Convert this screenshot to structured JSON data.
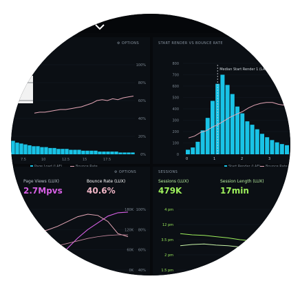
{
  "colors": {
    "background": "#07090c",
    "panel": "#0b0f14",
    "cyan": "#19c3e6",
    "pink": "#e6a7b7",
    "magenta": "#d760e5",
    "green": "#9ef05c",
    "white": "#ffffff"
  },
  "header": {
    "chevron_icon": "chevron-down-icon"
  },
  "top_left": {
    "options_label": "OPTIONS",
    "y_right_ticks": [
      "100%",
      "80%",
      "60%",
      "40%",
      "20%",
      "0%"
    ],
    "x_ticks": [
      "7.5",
      "10",
      "12.5",
      "15",
      "17.5"
    ],
    "legend": [
      "Page Load (LAF)",
      "Bounce Rate"
    ]
  },
  "top_right": {
    "title": "START RENDER VS BOUNCE RATE",
    "median_label": "Median Start Render 1 (LAF)",
    "y_ticks": [
      "800",
      "700",
      "600",
      "500",
      "400",
      "300",
      "200",
      "100",
      "0"
    ],
    "x_ticks": [
      "0",
      "1",
      "2",
      "3",
      "4"
    ],
    "legend": [
      "Start Render (LAF)",
      "Bounce Rate"
    ]
  },
  "bottom_left": {
    "options_label": "OPTIONS",
    "metric1_label": "Page Views (LUX)",
    "metric1_value": "2.7Mpvs",
    "metric2_label": "Bounce Rate (LUX)",
    "metric2_value": "40.6%",
    "y_left_ticks": [
      "180K",
      "120K",
      "60K",
      "0K"
    ],
    "y_right_ticks": [
      "100%",
      "80%",
      "60%",
      "40%"
    ]
  },
  "bottom_right": {
    "title": "SESSIONS",
    "metric1_label": "Sessions (LUX)",
    "metric1_value": "479K",
    "metric2_label": "Session Length (LUX)",
    "metric2_value": "17min",
    "y_ticks": [
      "4 pm",
      "12 pm",
      "3.5 pm",
      "2 pm",
      "1.5 pm"
    ]
  },
  "chart_data": [
    {
      "type": "bar",
      "panel": "top-left",
      "series": [
        {
          "name": "Page Load (LAF)",
          "values": [
            15,
            13,
            12,
            11,
            10,
            9,
            9,
            8,
            8,
            7,
            7,
            6,
            6,
            6,
            5,
            5,
            5,
            4,
            4,
            4,
            4,
            3,
            3,
            3,
            3,
            3,
            2,
            2,
            2,
            2
          ]
        },
        {
          "name": "Bounce Rate",
          "values": [
            46,
            47,
            47,
            48,
            49,
            50,
            50,
            51,
            52,
            53,
            55,
            57,
            60,
            61,
            60,
            62,
            61,
            63,
            64,
            65
          ]
        }
      ],
      "ylim": [
        0,
        100
      ]
    },
    {
      "type": "bar",
      "panel": "top-right",
      "title": "START RENDER VS BOUNCE RATE",
      "series": [
        {
          "name": "Start Render (LAF)",
          "values": [
            40,
            60,
            110,
            210,
            320,
            470,
            620,
            700,
            610,
            530,
            420,
            360,
            290,
            260,
            220,
            180,
            150,
            125,
            105,
            90,
            80
          ]
        },
        {
          "name": "Bounce Rate",
          "values": [
            18,
            20,
            24,
            26,
            30,
            33,
            37,
            41,
            44,
            47,
            51,
            54,
            56,
            57,
            57,
            55,
            54,
            54
          ]
        }
      ],
      "ylim": [
        0,
        800
      ],
      "xlim": [
        0,
        4.5
      ]
    },
    {
      "type": "line",
      "panel": "bottom-left",
      "series": [
        {
          "name": "Page Views (LUX)",
          "values": [
            20,
            18,
            22,
            35,
            65,
            95,
            120,
            140,
            160,
            170,
            172
          ]
        },
        {
          "name": "Bounce Rate (LUX)",
          "values": [
            60,
            62,
            66,
            72,
            80,
            88,
            92,
            90,
            80,
            60,
            55
          ]
        },
        {
          "values": [
            30,
            32,
            36,
            40,
            44,
            48,
            52,
            55,
            57,
            58,
            58
          ]
        }
      ],
      "ylim": [
        0,
        180
      ]
    },
    {
      "type": "line",
      "panel": "bottom-right",
      "series": [
        {
          "name": "Sessions (LUX)",
          "values": [
            60,
            58,
            57,
            55,
            53,
            50,
            48,
            45,
            40,
            30
          ]
        },
        {
          "name": "Session Length (LUX)",
          "values": [
            40,
            42,
            43,
            41,
            40,
            38,
            35,
            30,
            22,
            14
          ]
        }
      ],
      "ylim": [
        0,
        100
      ]
    }
  ]
}
